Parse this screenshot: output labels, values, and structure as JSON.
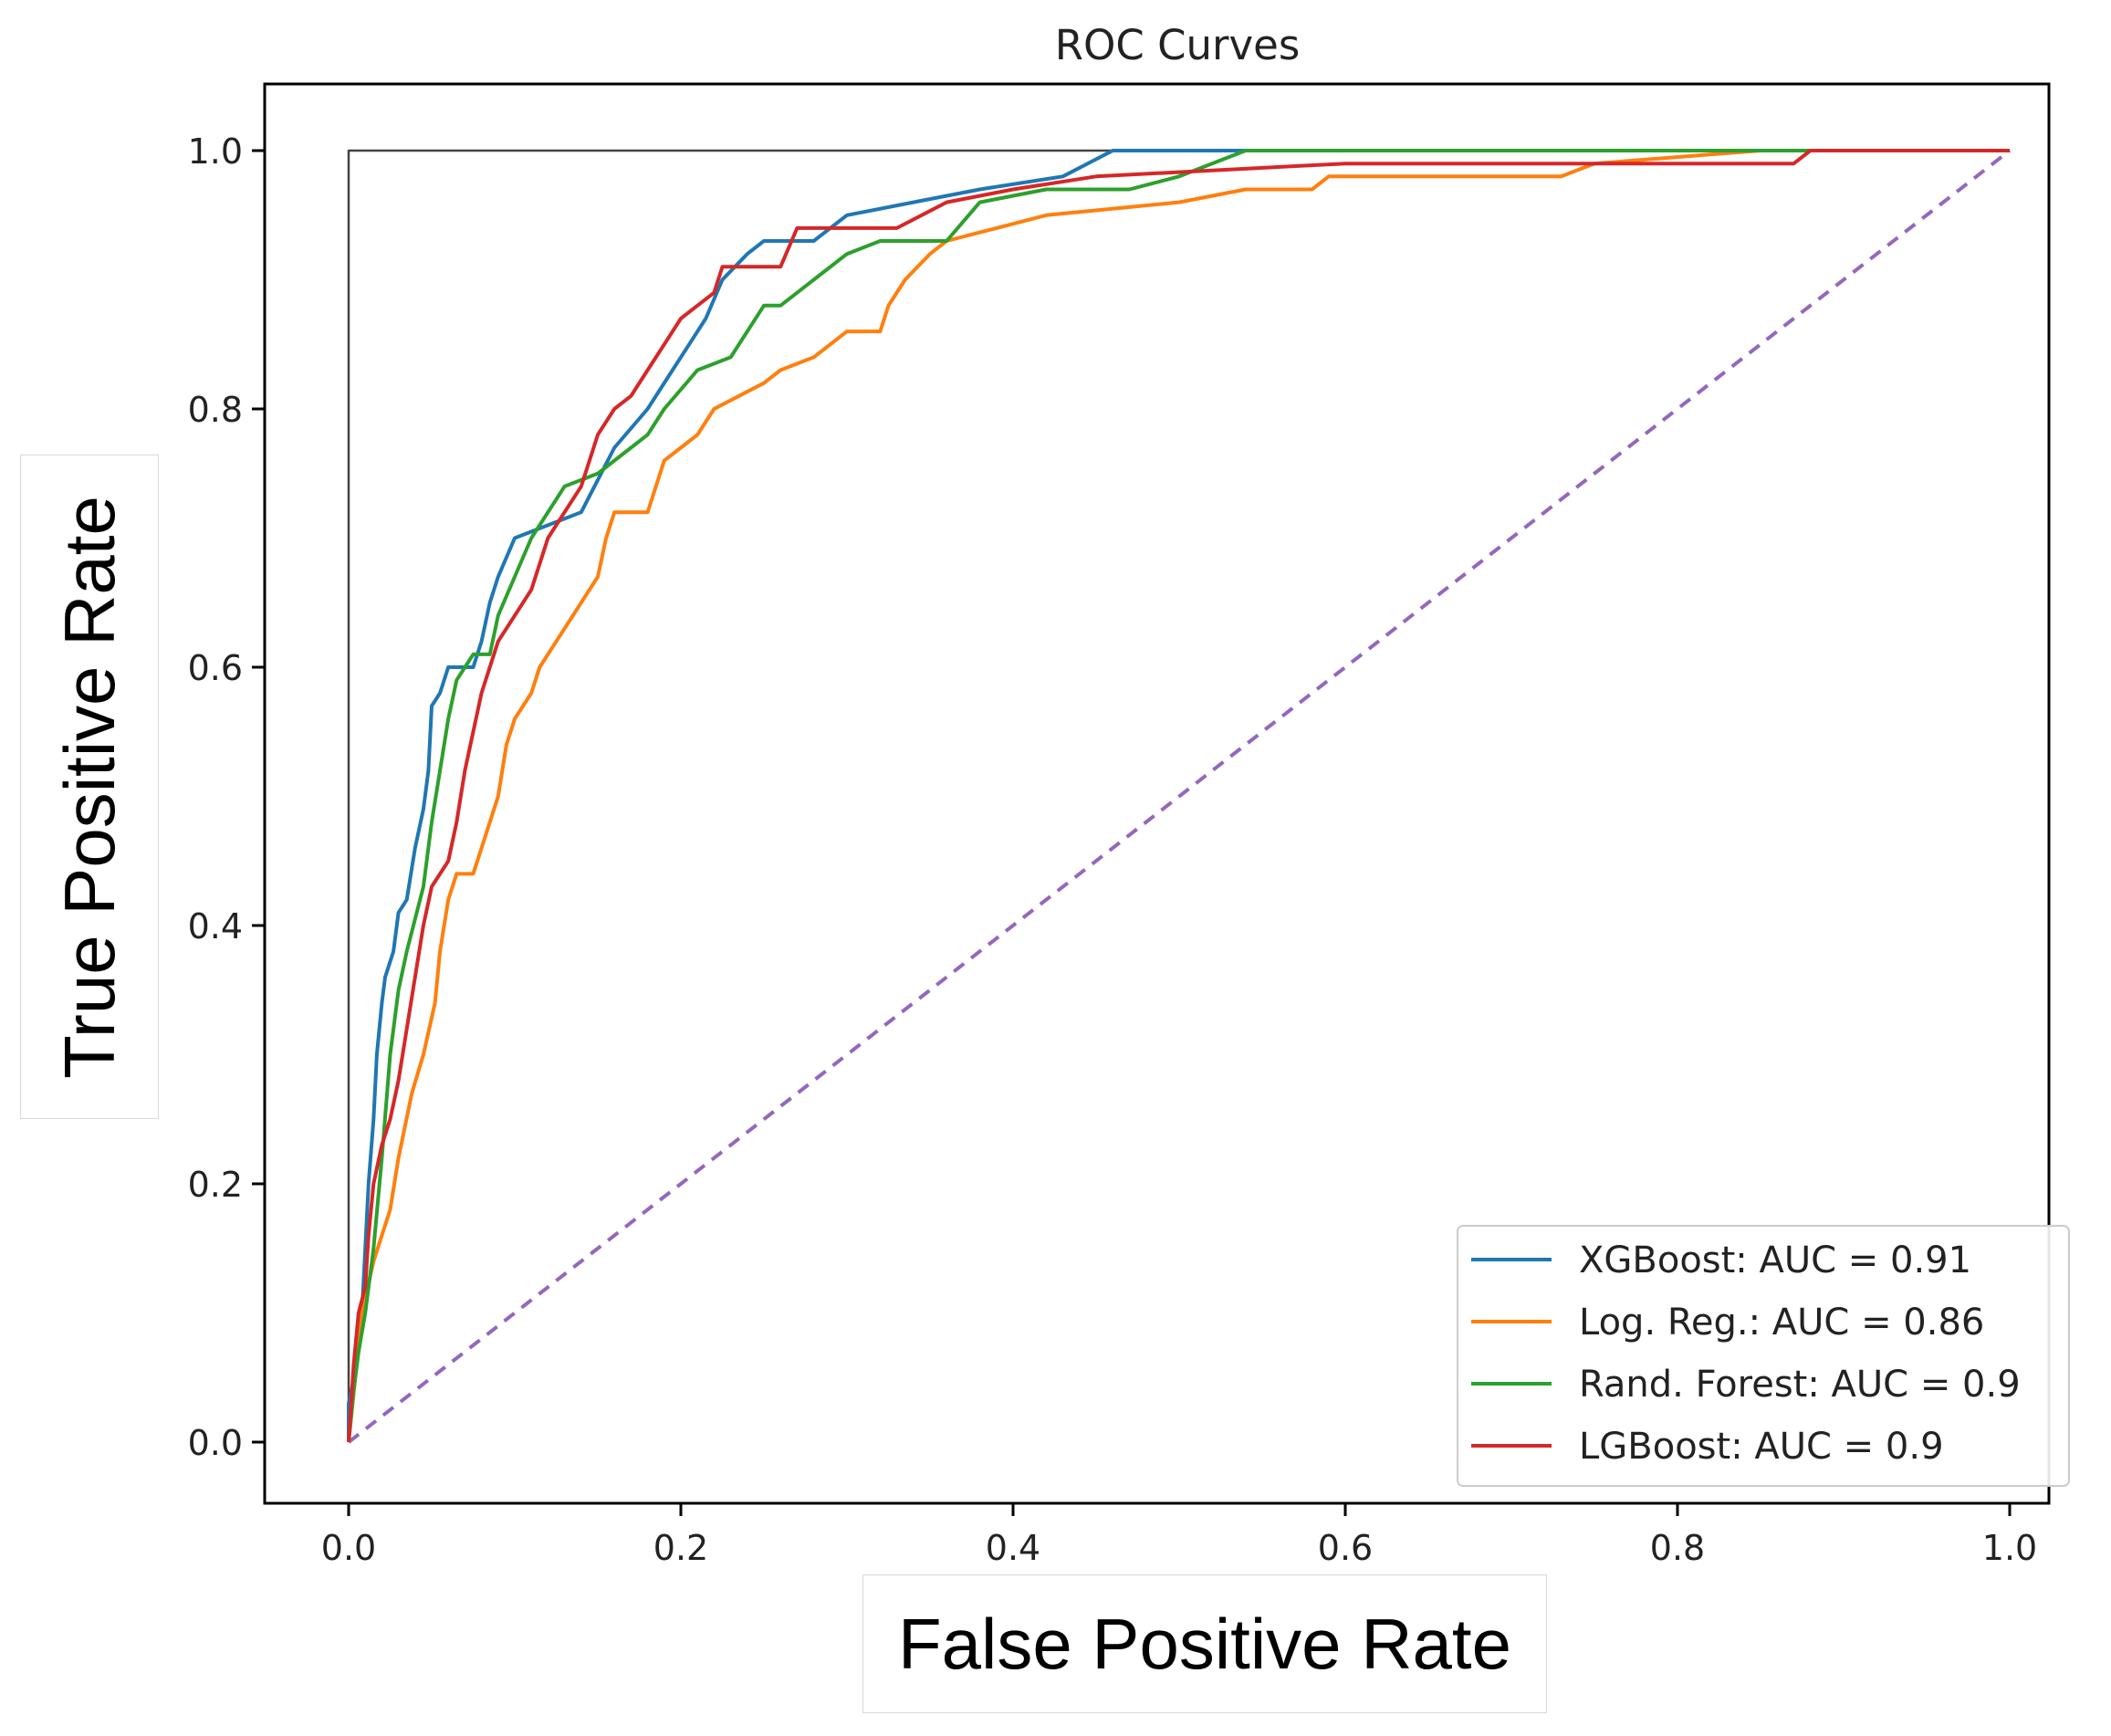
{
  "chart_data": {
    "type": "line",
    "title": "ROC Curves",
    "xlabel": "False Positive Rate",
    "ylabel": "True Positive Rate",
    "xlim": [
      -0.05,
      1.05
    ],
    "ylim": [
      -0.05,
      1.05
    ],
    "xticks": [
      "0.0",
      "0.2",
      "0.4",
      "0.6",
      "0.8",
      "1.0"
    ],
    "yticks": [
      "0.0",
      "0.2",
      "0.4",
      "0.6",
      "0.8",
      "1.0"
    ],
    "legend_position": "lower-right",
    "series": [
      {
        "name": "XGBoost: AUC = 0.91",
        "color": "#1f77b4",
        "points": [
          [
            0,
            0
          ],
          [
            0,
            0.03
          ],
          [
            0.005,
            0.06
          ],
          [
            0.008,
            0.1
          ],
          [
            0.01,
            0.15
          ],
          [
            0.012,
            0.2
          ],
          [
            0.015,
            0.25
          ],
          [
            0.017,
            0.3
          ],
          [
            0.02,
            0.34
          ],
          [
            0.022,
            0.36
          ],
          [
            0.027,
            0.38
          ],
          [
            0.03,
            0.41
          ],
          [
            0.035,
            0.42
          ],
          [
            0.04,
            0.46
          ],
          [
            0.045,
            0.49
          ],
          [
            0.048,
            0.52
          ],
          [
            0.05,
            0.57
          ],
          [
            0.055,
            0.58
          ],
          [
            0.06,
            0.6
          ],
          [
            0.075,
            0.6
          ],
          [
            0.08,
            0.62
          ],
          [
            0.085,
            0.65
          ],
          [
            0.09,
            0.67
          ],
          [
            0.1,
            0.7
          ],
          [
            0.12,
            0.71
          ],
          [
            0.14,
            0.72
          ],
          [
            0.16,
            0.77
          ],
          [
            0.18,
            0.8
          ],
          [
            0.195,
            0.83
          ],
          [
            0.205,
            0.85
          ],
          [
            0.215,
            0.87
          ],
          [
            0.225,
            0.9
          ],
          [
            0.24,
            0.92
          ],
          [
            0.25,
            0.93
          ],
          [
            0.28,
            0.93
          ],
          [
            0.3,
            0.95
          ],
          [
            0.34,
            0.96
          ],
          [
            0.38,
            0.97
          ],
          [
            0.43,
            0.98
          ],
          [
            0.46,
            1.0
          ],
          [
            1.0,
            1.0
          ]
        ]
      },
      {
        "name": "Log. Reg.: AUC = 0.86",
        "color": "#ff7f0e",
        "points": [
          [
            0,
            0
          ],
          [
            0.004,
            0.05
          ],
          [
            0.008,
            0.1
          ],
          [
            0.015,
            0.14
          ],
          [
            0.025,
            0.18
          ],
          [
            0.03,
            0.22
          ],
          [
            0.038,
            0.27
          ],
          [
            0.045,
            0.3
          ],
          [
            0.052,
            0.34
          ],
          [
            0.055,
            0.38
          ],
          [
            0.06,
            0.42
          ],
          [
            0.065,
            0.44
          ],
          [
            0.075,
            0.44
          ],
          [
            0.08,
            0.46
          ],
          [
            0.085,
            0.48
          ],
          [
            0.09,
            0.5
          ],
          [
            0.095,
            0.54
          ],
          [
            0.1,
            0.56
          ],
          [
            0.11,
            0.58
          ],
          [
            0.115,
            0.6
          ],
          [
            0.125,
            0.62
          ],
          [
            0.14,
            0.65
          ],
          [
            0.15,
            0.67
          ],
          [
            0.155,
            0.7
          ],
          [
            0.16,
            0.72
          ],
          [
            0.18,
            0.72
          ],
          [
            0.19,
            0.76
          ],
          [
            0.2,
            0.77
          ],
          [
            0.21,
            0.78
          ],
          [
            0.22,
            0.8
          ],
          [
            0.25,
            0.82
          ],
          [
            0.26,
            0.83
          ],
          [
            0.28,
            0.84
          ],
          [
            0.3,
            0.86
          ],
          [
            0.32,
            0.86
          ],
          [
            0.325,
            0.88
          ],
          [
            0.335,
            0.9
          ],
          [
            0.35,
            0.92
          ],
          [
            0.36,
            0.93
          ],
          [
            0.39,
            0.94
          ],
          [
            0.42,
            0.95
          ],
          [
            0.5,
            0.96
          ],
          [
            0.54,
            0.97
          ],
          [
            0.58,
            0.97
          ],
          [
            0.59,
            0.98
          ],
          [
            0.73,
            0.98
          ],
          [
            0.75,
            0.99
          ],
          [
            0.85,
            1.0
          ],
          [
            1.0,
            1.0
          ]
        ]
      },
      {
        "name": "Rand. Forest: AUC = 0.9",
        "color": "#2ca02c",
        "points": [
          [
            0,
            0
          ],
          [
            0.003,
            0.04
          ],
          [
            0.006,
            0.07
          ],
          [
            0.01,
            0.1
          ],
          [
            0.015,
            0.15
          ],
          [
            0.02,
            0.22
          ],
          [
            0.025,
            0.3
          ],
          [
            0.03,
            0.35
          ],
          [
            0.035,
            0.38
          ],
          [
            0.045,
            0.43
          ],
          [
            0.05,
            0.48
          ],
          [
            0.055,
            0.52
          ],
          [
            0.06,
            0.56
          ],
          [
            0.065,
            0.59
          ],
          [
            0.075,
            0.61
          ],
          [
            0.085,
            0.61
          ],
          [
            0.09,
            0.64
          ],
          [
            0.1,
            0.67
          ],
          [
            0.11,
            0.7
          ],
          [
            0.12,
            0.72
          ],
          [
            0.13,
            0.74
          ],
          [
            0.15,
            0.75
          ],
          [
            0.17,
            0.77
          ],
          [
            0.18,
            0.78
          ],
          [
            0.19,
            0.8
          ],
          [
            0.21,
            0.83
          ],
          [
            0.23,
            0.84
          ],
          [
            0.25,
            0.88
          ],
          [
            0.26,
            0.88
          ],
          [
            0.28,
            0.9
          ],
          [
            0.3,
            0.92
          ],
          [
            0.32,
            0.93
          ],
          [
            0.36,
            0.93
          ],
          [
            0.38,
            0.96
          ],
          [
            0.42,
            0.97
          ],
          [
            0.47,
            0.97
          ],
          [
            0.5,
            0.98
          ],
          [
            0.54,
            1.0
          ],
          [
            1.0,
            1.0
          ]
        ]
      },
      {
        "name": "LGBoost: AUC = 0.9",
        "color": "#d62728",
        "points": [
          [
            0,
            0
          ],
          [
            0.003,
            0.06
          ],
          [
            0.006,
            0.1
          ],
          [
            0.01,
            0.12
          ],
          [
            0.012,
            0.16
          ],
          [
            0.015,
            0.2
          ],
          [
            0.02,
            0.23
          ],
          [
            0.025,
            0.25
          ],
          [
            0.03,
            0.28
          ],
          [
            0.035,
            0.32
          ],
          [
            0.04,
            0.36
          ],
          [
            0.045,
            0.4
          ],
          [
            0.05,
            0.43
          ],
          [
            0.06,
            0.45
          ],
          [
            0.065,
            0.48
          ],
          [
            0.07,
            0.52
          ],
          [
            0.075,
            0.55
          ],
          [
            0.08,
            0.58
          ],
          [
            0.085,
            0.6
          ],
          [
            0.09,
            0.62
          ],
          [
            0.1,
            0.64
          ],
          [
            0.11,
            0.66
          ],
          [
            0.12,
            0.7
          ],
          [
            0.13,
            0.72
          ],
          [
            0.14,
            0.74
          ],
          [
            0.145,
            0.76
          ],
          [
            0.15,
            0.78
          ],
          [
            0.16,
            0.8
          ],
          [
            0.17,
            0.81
          ],
          [
            0.18,
            0.83
          ],
          [
            0.19,
            0.85
          ],
          [
            0.2,
            0.87
          ],
          [
            0.21,
            0.88
          ],
          [
            0.22,
            0.89
          ],
          [
            0.225,
            0.91
          ],
          [
            0.26,
            0.91
          ],
          [
            0.27,
            0.94
          ],
          [
            0.33,
            0.94
          ],
          [
            0.36,
            0.96
          ],
          [
            0.4,
            0.97
          ],
          [
            0.45,
            0.98
          ],
          [
            0.6,
            0.99
          ],
          [
            0.87,
            0.99
          ],
          [
            0.88,
            1.0
          ],
          [
            1.0,
            1.0
          ]
        ]
      },
      {
        "name": "chance",
        "color": "#9467bd",
        "dashed": true,
        "legend": false,
        "points": [
          [
            0,
            0
          ],
          [
            1,
            1
          ]
        ]
      },
      {
        "name": "perfect",
        "color": "#444444",
        "legend": false,
        "points": [
          [
            0,
            0
          ],
          [
            0,
            1
          ],
          [
            1,
            1
          ]
        ]
      }
    ]
  }
}
